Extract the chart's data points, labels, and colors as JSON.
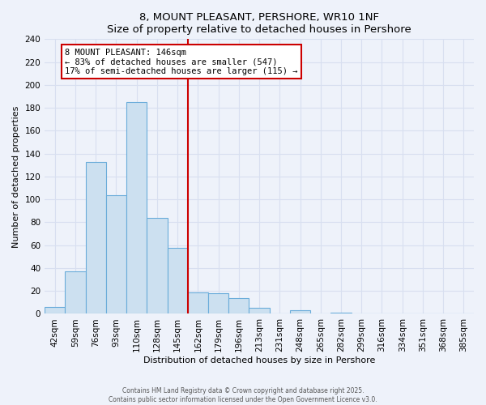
{
  "title": "8, MOUNT PLEASANT, PERSHORE, WR10 1NF",
  "subtitle": "Size of property relative to detached houses in Pershore",
  "xlabel": "Distribution of detached houses by size in Pershore",
  "ylabel": "Number of detached properties",
  "bin_labels": [
    "42sqm",
    "59sqm",
    "76sqm",
    "93sqm",
    "110sqm",
    "128sqm",
    "145sqm",
    "162sqm",
    "179sqm",
    "196sqm",
    "213sqm",
    "231sqm",
    "248sqm",
    "265sqm",
    "282sqm",
    "299sqm",
    "316sqm",
    "334sqm",
    "351sqm",
    "368sqm",
    "385sqm"
  ],
  "bar_values": [
    6,
    37,
    133,
    104,
    185,
    84,
    58,
    19,
    18,
    14,
    5,
    0,
    3,
    0,
    1,
    0,
    0,
    0,
    0,
    0,
    0
  ],
  "bar_color": "#cce0f0",
  "bar_edge_color": "#6aacda",
  "ylim": [
    0,
    240
  ],
  "yticks": [
    0,
    20,
    40,
    60,
    80,
    100,
    120,
    140,
    160,
    180,
    200,
    220,
    240
  ],
  "vline_bin_index": 6,
  "vline_color": "#cc0000",
  "annotation_title": "8 MOUNT PLEASANT: 146sqm",
  "annotation_line1": "← 83% of detached houses are smaller (547)",
  "annotation_line2": "17% of semi-detached houses are larger (115) →",
  "annotation_box_color": "#ffffff",
  "annotation_box_edge": "#cc0000",
  "footer1": "Contains HM Land Registry data © Crown copyright and database right 2025.",
  "footer2": "Contains public sector information licensed under the Open Government Licence v3.0.",
  "background_color": "#eef2fa",
  "grid_color": "#d8dff0"
}
